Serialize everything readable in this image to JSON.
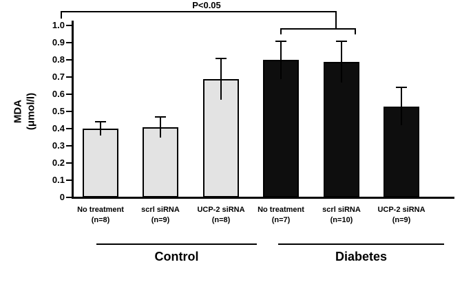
{
  "chart_data": {
    "type": "bar",
    "title": "",
    "ylabel": "MDA (μmol/l)",
    "ylabel_lines": [
      "MDA",
      "(μmol/l)"
    ],
    "xlabel": "",
    "ylim": [
      0,
      1.0
    ],
    "grid": false,
    "legend": "none",
    "ytick_values": [
      0,
      0.1,
      0.2,
      0.3,
      0.4,
      0.5,
      0.6,
      0.7,
      0.8,
      0.9,
      1.0
    ],
    "ytick_labels": [
      "0",
      "0.1",
      "0.2",
      "0.3",
      "0.4",
      "0.5",
      "0.6",
      "0.7",
      "0.8",
      "0.9",
      "1.0"
    ],
    "categories": [
      {
        "label": "No treatment",
        "n": "(n=8)"
      },
      {
        "label": "scrl siRNA",
        "n": "(n=9)"
      },
      {
        "label": "UCP-2 siRNA",
        "n": "(n=8)"
      },
      {
        "label": "No treatment",
        "n": "(n=7)"
      },
      {
        "label": "scrl siRNA",
        "n": "(n=10)"
      },
      {
        "label": "UCP-2 siRNA",
        "n": "(n=9)"
      }
    ],
    "values": [
      0.4,
      0.41,
      0.69,
      0.8,
      0.79,
      0.53
    ],
    "errors": [
      0.04,
      0.06,
      0.12,
      0.11,
      0.12,
      0.11
    ],
    "bar_colors": [
      "#e3e3e3",
      "#e3e3e3",
      "#e3e3e3",
      "#0e0e0e",
      "#0e0e0e",
      "#0e0e0e"
    ],
    "groups": [
      {
        "label": "Control",
        "members": [
          0,
          1,
          2
        ]
      },
      {
        "label": "Diabetes",
        "members": [
          3,
          4,
          5
        ]
      }
    ],
    "annotation": {
      "text": "P<0.05"
    }
  }
}
